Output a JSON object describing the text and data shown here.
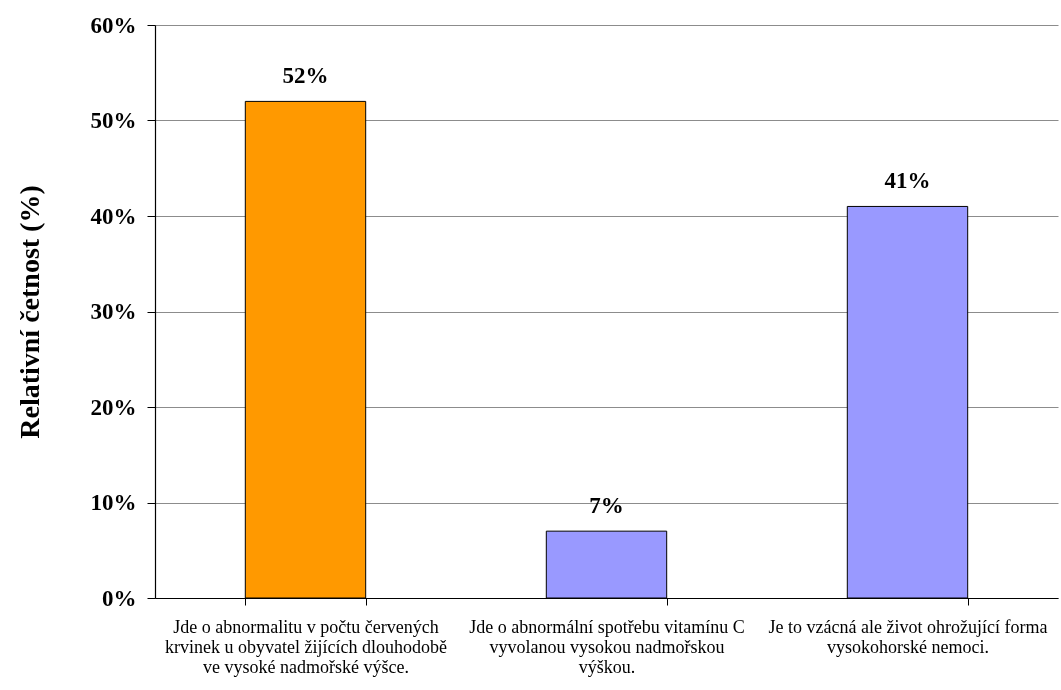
{
  "chart_data": {
    "type": "bar",
    "ylabel": "Relativní četnost (%)",
    "categories": [
      "Jde o abnormalitu v počtu červených krvinek u obyvatel žijících dlouhodobě ve vysoké nadmořské výšce.",
      "Jde o abnormální spotřebu vitamínu C vyvolanou vysokou nadmořskou výškou.",
      "Je to vzácná ale život ohrožující forma vysokohorské nemoci."
    ],
    "values": [
      52,
      7,
      41
    ],
    "colors": [
      "#ff9900",
      "#9999ff",
      "#9999ff"
    ],
    "value_labels": [
      "52%",
      "7%",
      "41%"
    ],
    "ylim": [
      0,
      60
    ],
    "yticks": [
      {
        "value": 0,
        "label": "0%"
      },
      {
        "value": 10,
        "label": "10%"
      },
      {
        "value": 20,
        "label": "20%"
      },
      {
        "value": 30,
        "label": "30%"
      },
      {
        "value": 40,
        "label": "40%"
      },
      {
        "value": 50,
        "label": "50%"
      },
      {
        "value": 60,
        "label": "60%"
      }
    ],
    "grid": "y"
  }
}
